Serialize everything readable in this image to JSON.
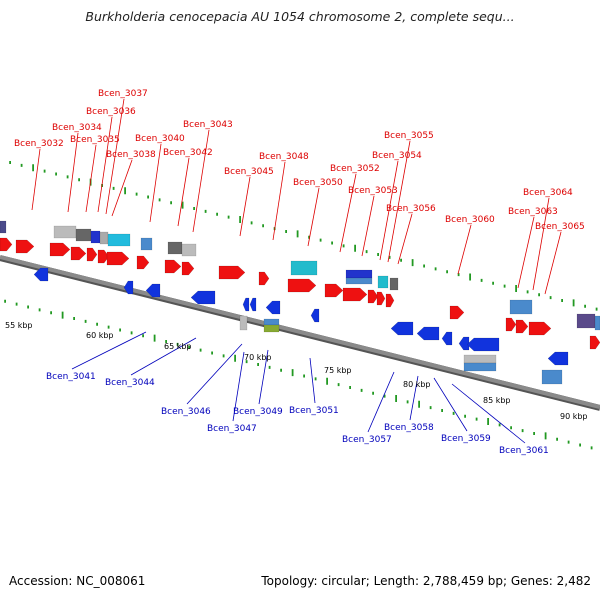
{
  "title": "Burkholderia cenocepacia AU 1054 chromosome 2, complete sequ...",
  "footer": {
    "accession": "Accession: NC_008061",
    "info": "Topology: circular; Length: 2,788,459 bp; Genes: 2,482"
  },
  "colors": {
    "forward_label": "#dd0000",
    "reverse_label": "#0000bb",
    "forward_gene": "#ee1111",
    "reverse_gene": "#1133dd",
    "tick": "#229922",
    "backbone": "#8a8a8a"
  },
  "scale_labels": [
    "55 kbp",
    "60 kbp",
    "65 kbp",
    "70 kbp",
    "75 kbp",
    "80 kbp",
    "85 kbp",
    "90 kbp"
  ],
  "forward_labels": [
    "Bcen_3032",
    "Bcen_3034",
    "Bcen_3035",
    "Bcen_3036",
    "Bcen_3037",
    "Bcen_3038",
    "Bcen_3040",
    "Bcen_3042",
    "Bcen_3043",
    "Bcen_3045",
    "Bcen_3048",
    "Bcen_3050",
    "Bcen_3052",
    "Bcen_3053",
    "Bcen_3054",
    "Bcen_3055",
    "Bcen_3056",
    "Bcen_3060",
    "Bcen_3063",
    "Bcen_3064",
    "Bcen_3065"
  ],
  "reverse_labels": [
    "Bcen_3041",
    "Bcen_3044",
    "Bcen_3046",
    "Bcen_3047",
    "Bcen_3049",
    "Bcen_3051",
    "Bcen_3057",
    "Bcen_3058",
    "Bcen_3059",
    "Bcen_3061"
  ]
}
